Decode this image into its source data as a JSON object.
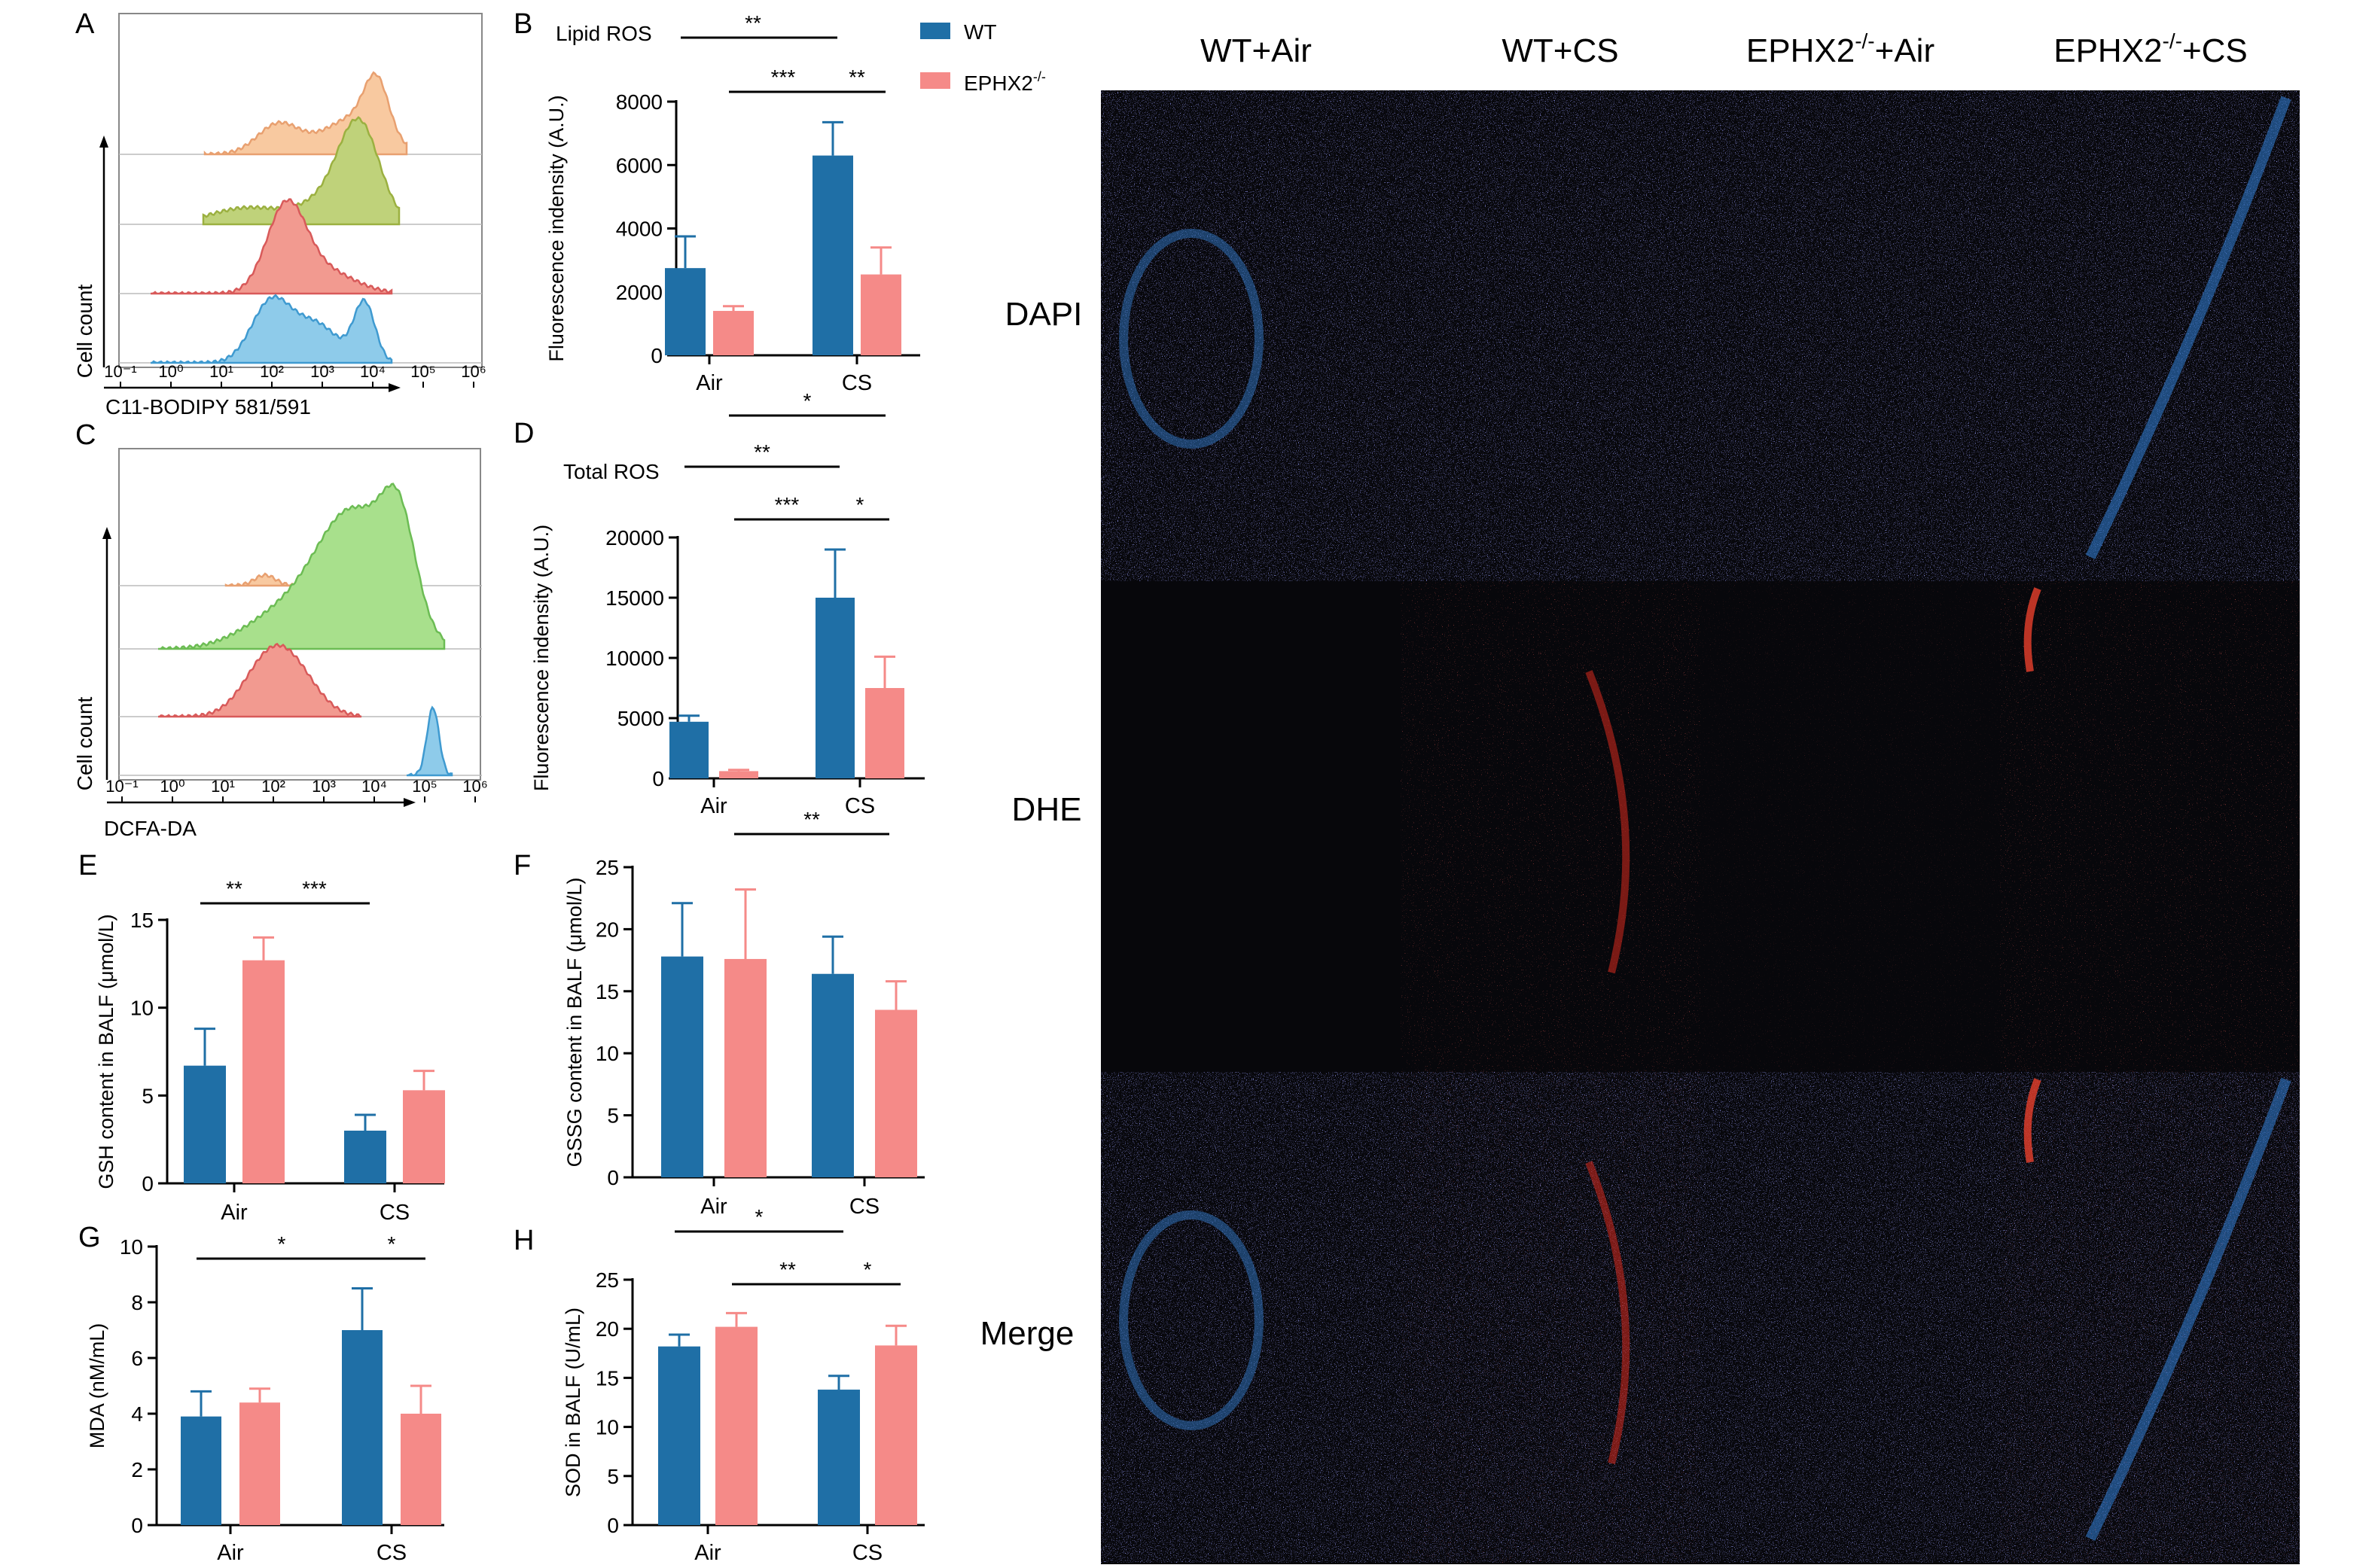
{
  "colors": {
    "wt": "#1f6fa6",
    "ko": "#f58a88",
    "axis": "#000000",
    "micro_bg": "#050508",
    "dapi": "#3a3fa8",
    "dhe": "#c42018"
  },
  "legend": {
    "wt_label": "WT",
    "ko_base": "EPHX2",
    "ko_sup": "-/-"
  },
  "panels": {
    "A": {
      "letter": "A",
      "ylabel": "Cell count",
      "xlabel": "C11-BODIPY 581/591",
      "ticks": [
        "10⁻¹",
        "10⁰",
        "10¹",
        "10²",
        "10³",
        "10⁴",
        "10⁵",
        "10⁶"
      ],
      "histograms": [
        {
          "color": "#f8c9a0",
          "stroke": "#e8a070"
        },
        {
          "color": "#bfd27a",
          "stroke": "#9bb040"
        },
        {
          "color": "#f29a90",
          "stroke": "#d85a5a"
        },
        {
          "color": "#8ecbea",
          "stroke": "#3f9ad0"
        }
      ]
    },
    "C": {
      "letter": "C",
      "ylabel": "Cell count",
      "xlabel": "DCFA-DA",
      "ticks": [
        "10⁻¹",
        "10⁰",
        "10¹",
        "10²",
        "10³",
        "10⁴",
        "10⁵",
        "10⁶"
      ],
      "histograms": [
        {
          "color": "#f8c9a0",
          "stroke": "#e8a070"
        },
        {
          "color": "#a8e08c",
          "stroke": "#6cbc54"
        },
        {
          "color": "#f29a90",
          "stroke": "#d85a5a"
        },
        {
          "color": "#8ecbea",
          "stroke": "#3f9ad0"
        }
      ]
    },
    "micro": {
      "columns": [
        "WT+Air",
        "WT+CS",
        "EPHX2-/-+Air",
        "EPHX2-/-+CS"
      ],
      "column_parts": [
        {
          "base": "WT+Air",
          "sup": "",
          "tail": ""
        },
        {
          "base": "WT+CS",
          "sup": "",
          "tail": ""
        },
        {
          "base": "EPHX2",
          "sup": "-/-",
          "tail": "+Air"
        },
        {
          "base": "EPHX2",
          "sup": "-/-",
          "tail": "+CS"
        }
      ],
      "rows": [
        "DAPI",
        "DHE",
        "Merge"
      ]
    }
  },
  "chart_data": [
    {
      "panel": "B",
      "type": "bar",
      "title": "Lipid ROS",
      "ylabel": "Fluorescence indensity (A.U.)",
      "categories": [
        "Air",
        "CS"
      ],
      "ylim": [
        0,
        8000
      ],
      "yticks": [
        0,
        2000,
        4000,
        6000,
        8000
      ],
      "series": [
        {
          "name": "WT",
          "values": [
            2750,
            6300
          ],
          "errors": [
            1000,
            1050
          ]
        },
        {
          "name": "EPHX2-/-",
          "values": [
            1400,
            2550
          ],
          "errors": [
            150,
            850
          ]
        }
      ],
      "significance": [
        {
          "from": [
            0,
            0
          ],
          "to": [
            1,
            0
          ],
          "label": "**"
        },
        {
          "from": [
            0,
            1
          ],
          "to": [
            1,
            0
          ],
          "label": "***"
        },
        {
          "from": [
            1,
            0
          ],
          "to": [
            1,
            1
          ],
          "label": "**"
        },
        {
          "from": [
            0,
            1
          ],
          "to": [
            1,
            1
          ],
          "label": "*",
          "below": true
        }
      ]
    },
    {
      "panel": "D",
      "type": "bar",
      "title": "Total ROS",
      "ylabel": "Fluorescence indensity (A.U.)",
      "categories": [
        "Air",
        "CS"
      ],
      "ylim": [
        0,
        20000
      ],
      "yticks": [
        0,
        5000,
        10000,
        15000,
        20000
      ],
      "series": [
        {
          "name": "WT",
          "values": [
            4700,
            15000
          ],
          "errors": [
            500,
            4000
          ]
        },
        {
          "name": "EPHX2-/-",
          "values": [
            600,
            7500
          ],
          "errors": [
            100,
            2600
          ]
        }
      ],
      "significance": [
        {
          "from": [
            0,
            0
          ],
          "to": [
            1,
            0
          ],
          "label": "**"
        },
        {
          "from": [
            0,
            1
          ],
          "to": [
            1,
            0
          ],
          "label": "***"
        },
        {
          "from": [
            1,
            0
          ],
          "to": [
            1,
            1
          ],
          "label": "*"
        },
        {
          "from": [
            0,
            1
          ],
          "to": [
            1,
            1
          ],
          "label": "**",
          "below": true
        }
      ]
    },
    {
      "panel": "E",
      "type": "bar",
      "title": "",
      "ylabel": "GSH content in BALF (μmol/L)",
      "categories": [
        "Air",
        "CS"
      ],
      "ylim": [
        0,
        15
      ],
      "yticks": [
        0,
        5,
        10,
        15
      ],
      "series": [
        {
          "name": "WT",
          "values": [
            6.7,
            3.0
          ],
          "errors": [
            2.1,
            0.9
          ]
        },
        {
          "name": "EPHX2-/-",
          "values": [
            12.7,
            5.3
          ],
          "errors": [
            1.3,
            1.1
          ]
        }
      ],
      "significance": [
        {
          "from": [
            0,
            0
          ],
          "to": [
            0,
            1
          ],
          "label": "**"
        },
        {
          "from": [
            0,
            1
          ],
          "to": [
            1,
            0
          ],
          "label": "***"
        }
      ]
    },
    {
      "panel": "F",
      "type": "bar",
      "title": "",
      "ylabel": "GSSG content in BALF (μmol/L)",
      "categories": [
        "Air",
        "CS"
      ],
      "ylim": [
        0,
        25
      ],
      "yticks": [
        0,
        5,
        10,
        15,
        20,
        25
      ],
      "series": [
        {
          "name": "WT",
          "values": [
            17.8,
            16.4
          ],
          "errors": [
            4.3,
            3.0
          ]
        },
        {
          "name": "EPHX2-/-",
          "values": [
            17.6,
            13.5
          ],
          "errors": [
            5.6,
            2.3
          ]
        }
      ],
      "significance": []
    },
    {
      "panel": "G",
      "type": "bar",
      "title": "",
      "ylabel": "MDA (nM/mL)",
      "categories": [
        "Air",
        "CS"
      ],
      "ylim": [
        0,
        10
      ],
      "yticks": [
        0,
        2,
        4,
        6,
        8,
        10
      ],
      "series": [
        {
          "name": "WT",
          "values": [
            3.9,
            7.0
          ],
          "errors": [
            0.9,
            1.5
          ]
        },
        {
          "name": "EPHX2-/-",
          "values": [
            4.4,
            4.0
          ],
          "errors": [
            0.5,
            1.0
          ]
        }
      ],
      "significance": [
        {
          "from": [
            0,
            0
          ],
          "to": [
            1,
            0
          ],
          "label": "*"
        },
        {
          "from": [
            1,
            0
          ],
          "to": [
            1,
            1
          ],
          "label": "*"
        }
      ]
    },
    {
      "panel": "H",
      "type": "bar",
      "title": "",
      "ylabel": "SOD in BALF (U/mL)",
      "categories": [
        "Air",
        "CS"
      ],
      "ylim": [
        0,
        25
      ],
      "yticks": [
        0,
        5,
        10,
        15,
        20,
        25
      ],
      "series": [
        {
          "name": "WT",
          "values": [
            18.2,
            13.8
          ],
          "errors": [
            1.2,
            1.4
          ]
        },
        {
          "name": "EPHX2-/-",
          "values": [
            20.2,
            18.3
          ],
          "errors": [
            1.4,
            2.0
          ]
        }
      ],
      "significance": [
        {
          "from": [
            0,
            0
          ],
          "to": [
            1,
            0
          ],
          "label": "*"
        },
        {
          "from": [
            0,
            1
          ],
          "to": [
            1,
            0
          ],
          "label": "**"
        },
        {
          "from": [
            1,
            0
          ],
          "to": [
            1,
            1
          ],
          "label": "*"
        }
      ]
    }
  ]
}
